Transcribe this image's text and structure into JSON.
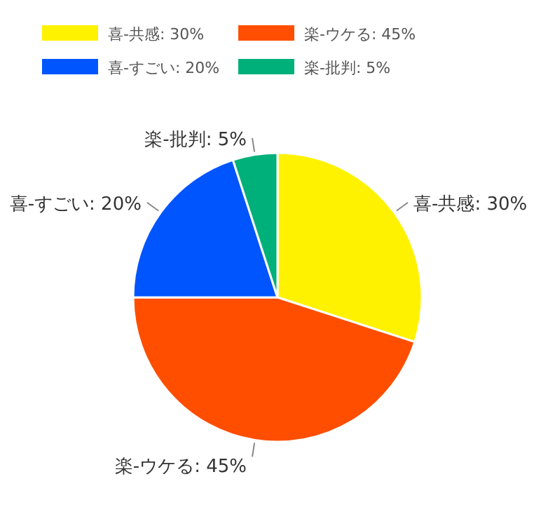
{
  "chart_data": {
    "type": "pie",
    "categories": [
      "喜-共感",
      "楽-ウケる",
      "喜-すごい",
      "楽-批判"
    ],
    "values": [
      30,
      45,
      20,
      5
    ],
    "value_labels": [
      "30%",
      "45%",
      "20%",
      "5%"
    ],
    "colors": [
      "#fff200",
      "#ff4e00",
      "#0055ff",
      "#00b07a"
    ],
    "legend": "top"
  }
}
